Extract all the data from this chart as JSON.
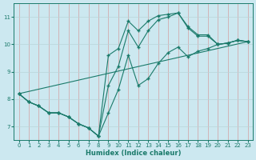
{
  "title": "",
  "xlabel": "Humidex (Indice chaleur)",
  "bg_color": "#cce8f0",
  "vgrid_color": "#d4a0a0",
  "hgrid_color": "#b8d4d8",
  "line_color": "#1a7a6a",
  "xlim": [
    -0.5,
    23.5
  ],
  "ylim": [
    6.5,
    11.5
  ],
  "yticks": [
    7,
    8,
    9,
    10,
    11
  ],
  "xticks": [
    0,
    1,
    2,
    3,
    4,
    5,
    6,
    7,
    8,
    9,
    10,
    11,
    12,
    13,
    14,
    15,
    16,
    17,
    18,
    19,
    20,
    21,
    22,
    23
  ],
  "line1_x": [
    0,
    1,
    2,
    3,
    4,
    5,
    6,
    7,
    8,
    9,
    10,
    11,
    12,
    13,
    14,
    15,
    16,
    17,
    18,
    19,
    20,
    21,
    22,
    23
  ],
  "line1_y": [
    8.2,
    7.9,
    7.75,
    7.5,
    7.5,
    7.35,
    7.1,
    6.95,
    6.65,
    9.6,
    9.85,
    10.85,
    10.5,
    10.85,
    11.05,
    11.1,
    11.15,
    10.65,
    10.35,
    10.35,
    10.0,
    10.05,
    10.15,
    10.1
  ],
  "line2_x": [
    0,
    1,
    2,
    3,
    4,
    5,
    6,
    7,
    8,
    9,
    10,
    11,
    12,
    13,
    14,
    15,
    16,
    17,
    18,
    19,
    20,
    21,
    22,
    23
  ],
  "line2_y": [
    8.2,
    7.9,
    7.75,
    7.5,
    7.5,
    7.35,
    7.1,
    6.95,
    6.65,
    7.5,
    8.35,
    9.6,
    8.5,
    8.75,
    9.3,
    9.7,
    9.9,
    9.55,
    9.75,
    9.85,
    10.0,
    10.05,
    10.15,
    10.1
  ],
  "line3_x": [
    0,
    23
  ],
  "line3_y": [
    8.2,
    10.1
  ],
  "line4_x": [
    0,
    1,
    2,
    3,
    4,
    5,
    6,
    7,
    8,
    9,
    10,
    11,
    12,
    13,
    14,
    15,
    16,
    17,
    18,
    19,
    20,
    21,
    22,
    23
  ],
  "line4_y": [
    8.2,
    7.9,
    7.75,
    7.5,
    7.5,
    7.35,
    7.1,
    6.95,
    6.65,
    8.5,
    9.2,
    10.5,
    9.9,
    10.5,
    10.9,
    11.0,
    11.15,
    10.6,
    10.3,
    10.3,
    10.0,
    10.05,
    10.15,
    10.1
  ]
}
